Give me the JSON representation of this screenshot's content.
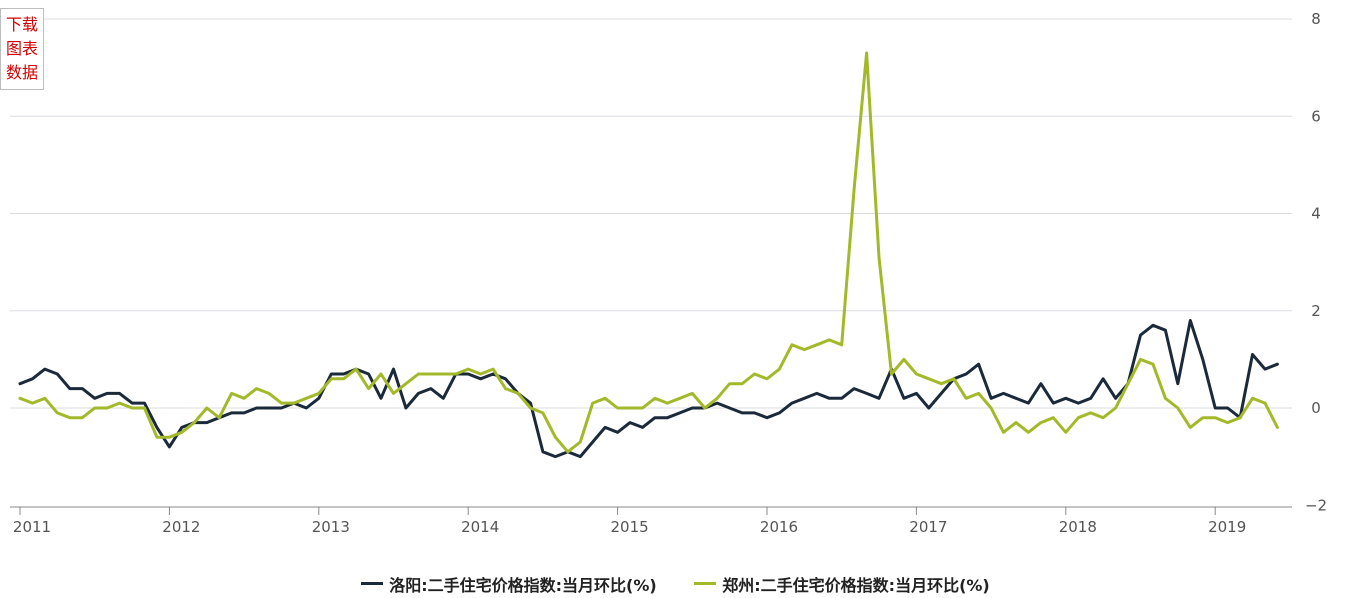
{
  "download_button": {
    "line1": "下载",
    "line2": "图表",
    "line3": "数据"
  },
  "chart_data": {
    "type": "line",
    "title": "",
    "xlabel": "",
    "ylabel": "",
    "ylim": [
      -2,
      8
    ],
    "y_ticks": [
      "8",
      "6",
      "4",
      "2",
      "0",
      "−2"
    ],
    "y_tick_values": [
      8,
      6,
      4,
      2,
      0,
      -2
    ],
    "x_ticks": [
      "2011",
      "2012",
      "2013",
      "2014",
      "2015",
      "2016",
      "2017",
      "2018",
      "2019"
    ],
    "x_start": "2011-01",
    "grid": true,
    "legend_position": "bottom",
    "series": [
      {
        "name": "洛阳:二手住宅价格指数:当月环比(%)",
        "color": "#1b2a3a",
        "values": [
          0.5,
          0.6,
          0.8,
          0.7,
          0.4,
          0.4,
          0.2,
          0.3,
          0.3,
          0.1,
          0.1,
          -0.4,
          -0.8,
          -0.4,
          -0.3,
          -0.3,
          -0.2,
          -0.1,
          -0.1,
          0.0,
          0.0,
          0.0,
          0.1,
          0.0,
          0.2,
          0.7,
          0.7,
          0.8,
          0.7,
          0.2,
          0.8,
          0.0,
          0.3,
          0.4,
          0.2,
          0.7,
          0.7,
          0.6,
          0.7,
          0.6,
          0.3,
          0.1,
          -0.9,
          -1.0,
          -0.9,
          -1.0,
          -0.7,
          -0.4,
          -0.5,
          -0.3,
          -0.4,
          -0.2,
          -0.2,
          -0.1,
          0.0,
          0.0,
          0.1,
          0.0,
          -0.1,
          -0.1,
          -0.2,
          -0.1,
          0.1,
          0.2,
          0.3,
          0.2,
          0.2,
          0.4,
          0.3,
          0.2,
          0.8,
          0.2,
          0.3,
          0.0,
          0.3,
          0.6,
          0.7,
          0.9,
          0.2,
          0.3,
          0.2,
          0.1,
          0.5,
          0.1,
          0.2,
          0.1,
          0.2,
          0.6,
          0.2,
          0.5,
          1.5,
          1.7,
          1.6,
          0.5,
          1.8,
          1.0,
          0.0,
          0.0,
          -0.2,
          1.1,
          0.8,
          0.9
        ]
      },
      {
        "name": "郑州:二手住宅价格指数:当月环比(%)",
        "color": "#a3b92a",
        "values": [
          0.2,
          0.1,
          0.2,
          -0.1,
          -0.2,
          -0.2,
          0.0,
          0.0,
          0.1,
          0.0,
          0.0,
          -0.6,
          -0.6,
          -0.5,
          -0.3,
          0.0,
          -0.2,
          0.3,
          0.2,
          0.4,
          0.3,
          0.1,
          0.1,
          0.2,
          0.3,
          0.6,
          0.6,
          0.8,
          0.4,
          0.7,
          0.3,
          0.5,
          0.7,
          0.7,
          0.7,
          0.7,
          0.8,
          0.7,
          0.8,
          0.4,
          0.3,
          0.0,
          -0.1,
          -0.6,
          -0.9,
          -0.7,
          0.1,
          0.2,
          0.0,
          0.0,
          0.0,
          0.2,
          0.1,
          0.2,
          0.3,
          0.0,
          0.2,
          0.5,
          0.5,
          0.7,
          0.6,
          0.8,
          1.3,
          1.2,
          1.3,
          1.4,
          1.3,
          4.5,
          7.3,
          3.1,
          0.7,
          1.0,
          0.7,
          0.6,
          0.5,
          0.6,
          0.2,
          0.3,
          0.0,
          -0.5,
          -0.3,
          -0.5,
          -0.3,
          -0.2,
          -0.5,
          -0.2,
          -0.1,
          -0.2,
          0.0,
          0.5,
          1.0,
          0.9,
          0.2,
          0.0,
          -0.4,
          -0.2,
          -0.2,
          -0.3,
          -0.2,
          0.2,
          0.1,
          -0.4
        ]
      }
    ]
  }
}
